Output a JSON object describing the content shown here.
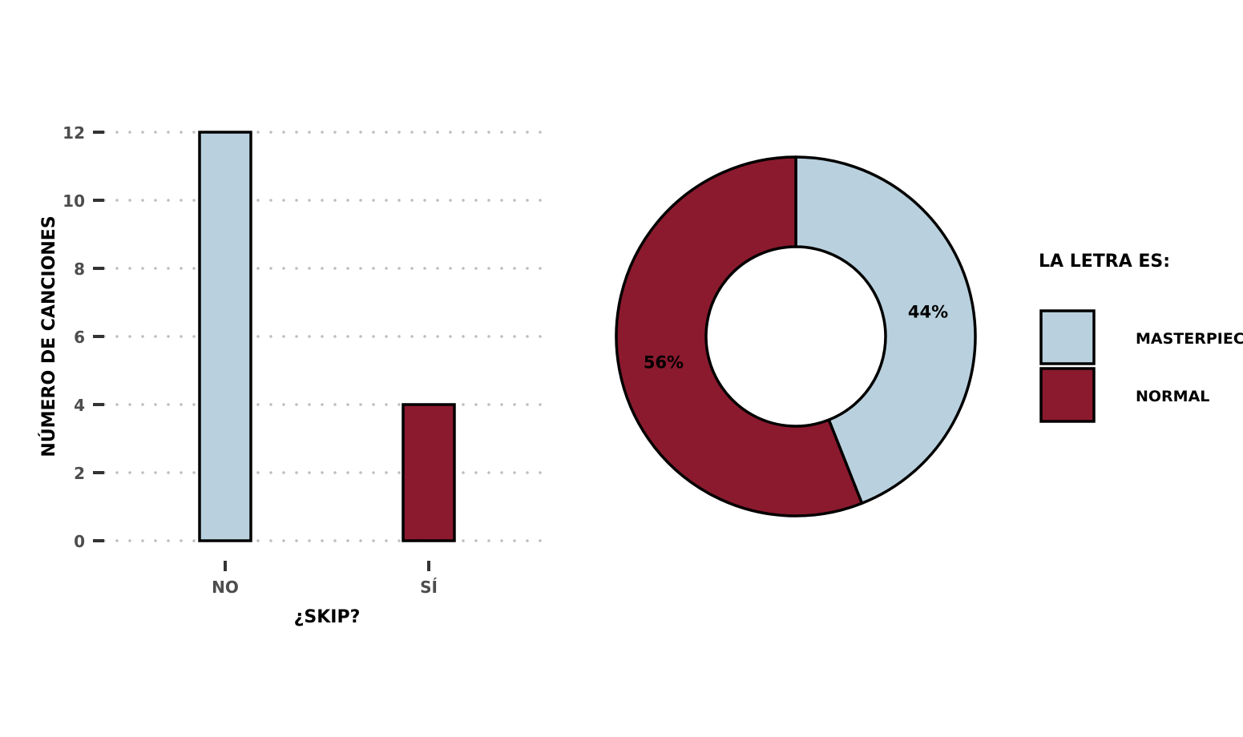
{
  "chart_data": [
    {
      "type": "bar",
      "categories": [
        "NO",
        "SÍ"
      ],
      "values": [
        12,
        4
      ],
      "colors": [
        "#b9d1de",
        "#8b1a2e"
      ],
      "xlabel": "¿SKIP?",
      "ylabel": "NÚMERO DE CANCIONES",
      "ylim": [
        0,
        12
      ],
      "yticks": [
        "0",
        "2",
        "4",
        "6",
        "8",
        "10",
        "12"
      ],
      "grid": "horizontal dotted"
    },
    {
      "type": "pie",
      "variant": "donut",
      "labels": [
        "MASTERPIECE",
        "NORMAL"
      ],
      "values": [
        44,
        56
      ],
      "value_labels": [
        "44%",
        "56%"
      ],
      "colors": [
        "#b9d1de",
        "#8b1a2e"
      ],
      "legend_title": "LA LETRA ES:",
      "legend_position": "right"
    }
  ]
}
